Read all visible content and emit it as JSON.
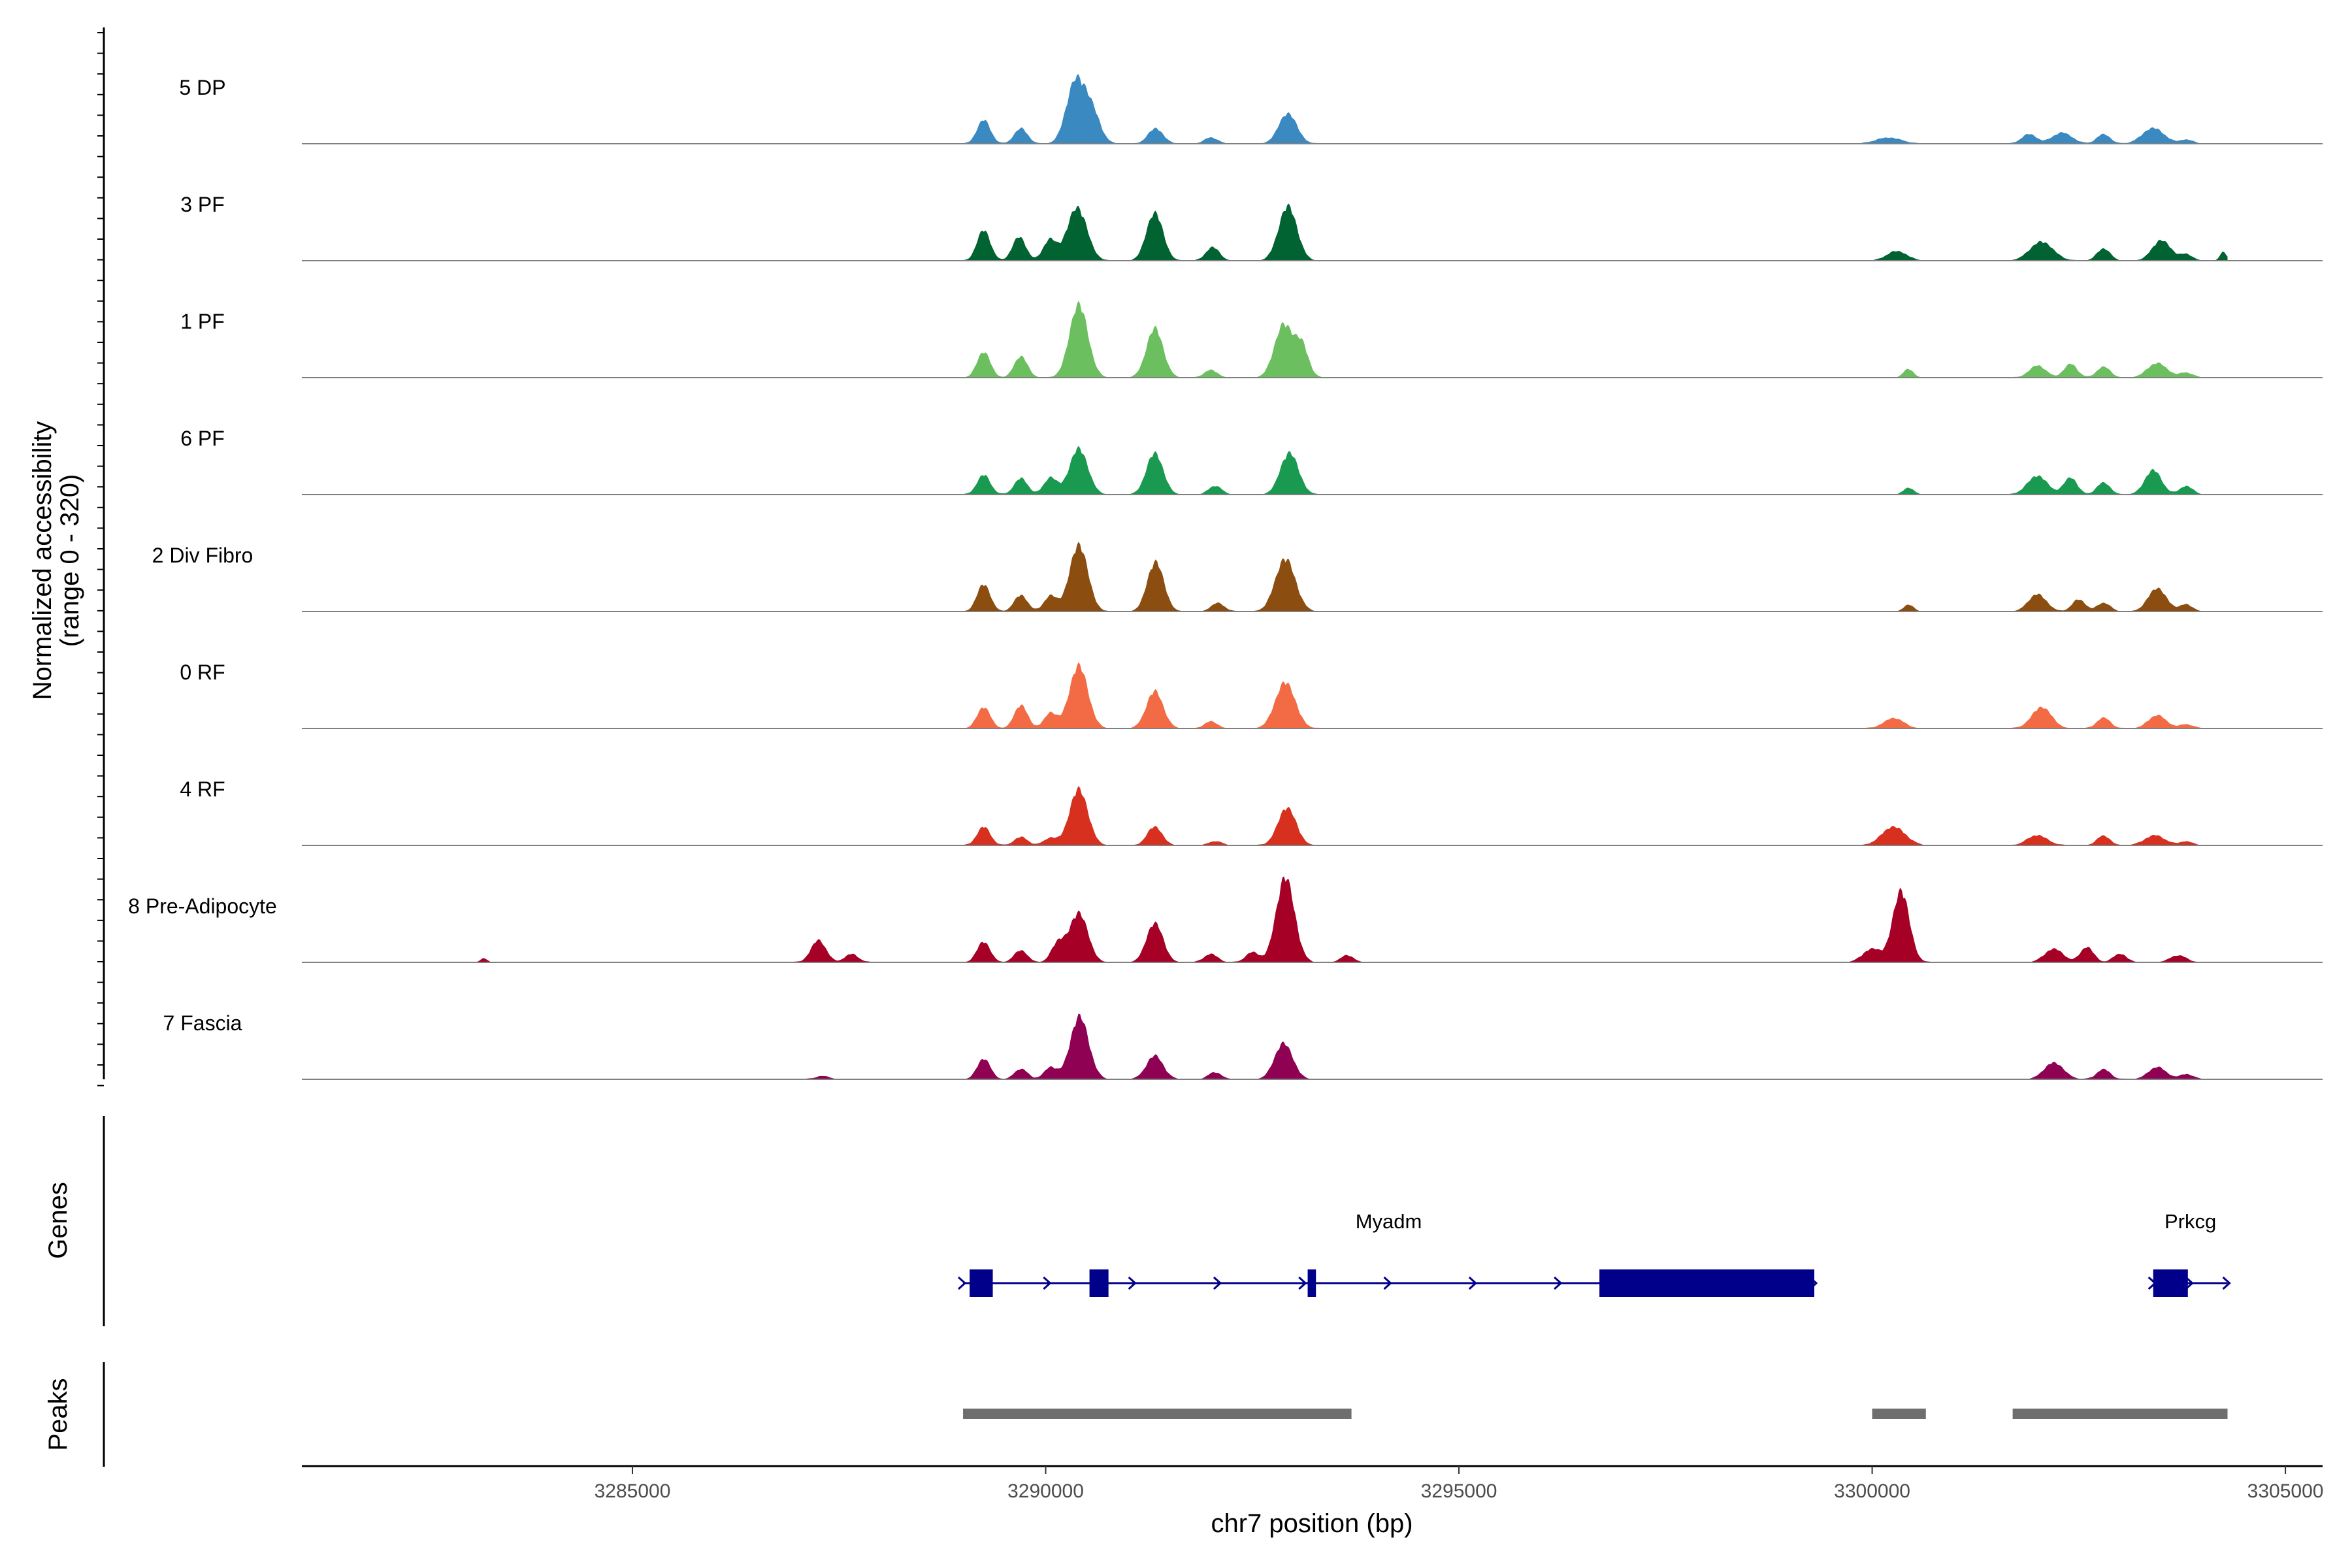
{
  "chart_data": {
    "type": "area",
    "title": "",
    "ylabel_lines": [
      "Normalized accessibility",
      "(range 0 - 320)"
    ],
    "ylim": [
      0,
      320
    ],
    "xlabel": "chr7 position (bp)",
    "xlim": [
      3281000,
      3305450
    ],
    "x_ticks": [
      3285000,
      3290000,
      3295000,
      3300000,
      3305000
    ],
    "x_tick_labels": [
      "3285000",
      "3290000",
      "3295000",
      "3300000",
      "3305000"
    ],
    "region": [
      3281000,
      3304300
    ],
    "series": [
      {
        "name": "5 DP",
        "color": "#3A89C0",
        "peaks": [
          [
            3289250,
            70,
            80
          ],
          [
            3289700,
            45,
            80
          ],
          [
            3290360,
            180,
            110
          ],
          [
            3290560,
            90,
            100
          ],
          [
            3291330,
            45,
            90
          ],
          [
            3292000,
            18,
            80
          ],
          [
            3292930,
            88,
            110
          ],
          [
            3300200,
            18,
            150
          ],
          [
            3301900,
            28,
            90
          ],
          [
            3302300,
            32,
            120
          ],
          [
            3302800,
            28,
            80
          ],
          [
            3303400,
            46,
            130
          ],
          [
            3303800,
            12,
            80
          ]
        ]
      },
      {
        "name": "3 PF",
        "color": "#006331",
        "peaks": [
          [
            3289250,
            90,
            80
          ],
          [
            3289680,
            70,
            80
          ],
          [
            3290050,
            60,
            80
          ],
          [
            3290380,
            155,
            120
          ],
          [
            3291320,
            140,
            100
          ],
          [
            3292020,
            40,
            80
          ],
          [
            3292930,
            160,
            110
          ],
          [
            3300300,
            28,
            120
          ],
          [
            3302050,
            55,
            140
          ],
          [
            3302800,
            35,
            80
          ],
          [
            3303500,
            60,
            110
          ],
          [
            3303800,
            18,
            80
          ],
          [
            3304250,
            25,
            40
          ]
        ]
      },
      {
        "name": "1 PF",
        "color": "#6BBF5F",
        "peaks": [
          [
            3289250,
            75,
            80
          ],
          [
            3289700,
            62,
            80
          ],
          [
            3290400,
            215,
            110
          ],
          [
            3291320,
            145,
            100
          ],
          [
            3292000,
            22,
            80
          ],
          [
            3292880,
            155,
            110
          ],
          [
            3293100,
            90,
            80
          ],
          [
            3300440,
            25,
            60
          ],
          [
            3302000,
            35,
            100
          ],
          [
            3302400,
            40,
            80
          ],
          [
            3302800,
            32,
            80
          ],
          [
            3303450,
            42,
            120
          ],
          [
            3303800,
            14,
            80
          ]
        ]
      },
      {
        "name": "6 PF",
        "color": "#1A9A50",
        "peaks": [
          [
            3289250,
            58,
            80
          ],
          [
            3289700,
            48,
            80
          ],
          [
            3290060,
            50,
            80
          ],
          [
            3290400,
            135,
            110
          ],
          [
            3291320,
            122,
            100
          ],
          [
            3292050,
            25,
            80
          ],
          [
            3292950,
            122,
            110
          ],
          [
            3300440,
            20,
            60
          ],
          [
            3302000,
            55,
            120
          ],
          [
            3302400,
            50,
            80
          ],
          [
            3302800,
            35,
            80
          ],
          [
            3303400,
            72,
            100
          ],
          [
            3303800,
            25,
            80
          ]
        ]
      },
      {
        "name": "2 Div Fibro",
        "color": "#8B4E10",
        "peaks": [
          [
            3289250,
            80,
            80
          ],
          [
            3289700,
            48,
            80
          ],
          [
            3290060,
            45,
            80
          ],
          [
            3290400,
            195,
            110
          ],
          [
            3291330,
            145,
            100
          ],
          [
            3292080,
            25,
            80
          ],
          [
            3292900,
            155,
            120
          ],
          [
            3300440,
            20,
            60
          ],
          [
            3302000,
            50,
            110
          ],
          [
            3302500,
            35,
            80
          ],
          [
            3302800,
            25,
            80
          ],
          [
            3303450,
            68,
            110
          ],
          [
            3303800,
            20,
            80
          ]
        ]
      },
      {
        "name": "0 RF",
        "color": "#F26B44",
        "peaks": [
          [
            3289250,
            62,
            80
          ],
          [
            3289700,
            68,
            80
          ],
          [
            3290060,
            45,
            80
          ],
          [
            3290400,
            185,
            110
          ],
          [
            3291320,
            110,
            100
          ],
          [
            3292000,
            20,
            80
          ],
          [
            3292900,
            135,
            120
          ],
          [
            3300260,
            30,
            120
          ],
          [
            3302050,
            62,
            120
          ],
          [
            3302800,
            32,
            80
          ],
          [
            3303450,
            38,
            110
          ],
          [
            3303800,
            12,
            80
          ]
        ]
      },
      {
        "name": "4 RF",
        "color": "#D7301F",
        "peaks": [
          [
            3289250,
            55,
            80
          ],
          [
            3289700,
            25,
            80
          ],
          [
            3290060,
            22,
            80
          ],
          [
            3290400,
            165,
            110
          ],
          [
            3291320,
            55,
            90
          ],
          [
            3292050,
            12,
            80
          ],
          [
            3292920,
            110,
            110
          ],
          [
            3300260,
            55,
            140
          ],
          [
            3302000,
            30,
            120
          ],
          [
            3302800,
            28,
            80
          ],
          [
            3303420,
            30,
            120
          ],
          [
            3303800,
            12,
            80
          ]
        ]
      },
      {
        "name": "8 Pre-Adipocyte",
        "color": "#A60026",
        "peaks": [
          [
            3283200,
            12,
            40
          ],
          [
            3287250,
            65,
            90
          ],
          [
            3287650,
            25,
            80
          ],
          [
            3289250,
            60,
            80
          ],
          [
            3289700,
            35,
            80
          ],
          [
            3290150,
            55,
            80
          ],
          [
            3290400,
            145,
            110
          ],
          [
            3291320,
            115,
            100
          ],
          [
            3292000,
            25,
            80
          ],
          [
            3292500,
            30,
            80
          ],
          [
            3292900,
            250,
            110
          ],
          [
            3293650,
            20,
            80
          ],
          [
            3300000,
            40,
            110
          ],
          [
            3300350,
            210,
            100
          ],
          [
            3302200,
            40,
            110
          ],
          [
            3302600,
            45,
            80
          ],
          [
            3303000,
            25,
            80
          ],
          [
            3303700,
            20,
            100
          ]
        ]
      },
      {
        "name": "7 Fascia",
        "color": "#8F0152",
        "peaks": [
          [
            3289250,
            60,
            80
          ],
          [
            3289700,
            30,
            80
          ],
          [
            3290060,
            35,
            80
          ],
          [
            3290410,
            185,
            110
          ],
          [
            3291320,
            70,
            100
          ],
          [
            3292050,
            20,
            80
          ],
          [
            3292880,
            105,
            110
          ],
          [
            3287300,
            10,
            80
          ],
          [
            3302200,
            48,
            120
          ],
          [
            3302800,
            30,
            80
          ],
          [
            3303450,
            35,
            110
          ],
          [
            3303800,
            15,
            80
          ]
        ]
      }
    ],
    "genes_track": {
      "label": "Genes",
      "genes": [
        {
          "name": "Myadm",
          "start": 3289000,
          "end": 3299300,
          "strand": "+",
          "exons": [
            [
              3289080,
              3289360
            ],
            [
              3290530,
              3290760
            ],
            [
              3293170,
              3293270
            ],
            [
              3296700,
              3299300
            ]
          ]
        },
        {
          "name": "Prkcg",
          "start": 3303400,
          "end": 3304300,
          "strand": "+",
          "exons": [
            [
              3303400,
              3303820
            ]
          ]
        }
      ]
    },
    "peaks_track": {
      "label": "Peaks",
      "regions": [
        [
          3289000,
          3293700
        ],
        [
          3300000,
          3300650
        ],
        [
          3301700,
          3304300
        ]
      ]
    }
  }
}
